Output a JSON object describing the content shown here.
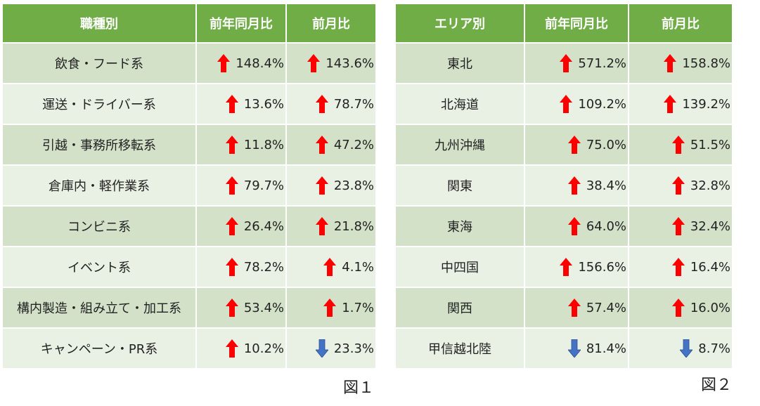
{
  "table1": {
    "headers": [
      "職種別",
      "前年同月比",
      "前月比"
    ],
    "rows": [
      {
        "name": "飲食・フード系",
        "yoy": {
          "dir": "up",
          "value": "148.4%"
        },
        "mom": {
          "dir": "up",
          "value": "143.6%"
        }
      },
      {
        "name": "運送・ドライバー系",
        "yoy": {
          "dir": "up",
          "value": "13.6%"
        },
        "mom": {
          "dir": "up",
          "value": "78.7%"
        }
      },
      {
        "name": "引越・事務所移転系",
        "yoy": {
          "dir": "up",
          "value": "11.8%"
        },
        "mom": {
          "dir": "up",
          "value": "47.2%"
        }
      },
      {
        "name": "倉庫内・軽作業系",
        "yoy": {
          "dir": "up",
          "value": "79.7%"
        },
        "mom": {
          "dir": "up",
          "value": "23.8%"
        }
      },
      {
        "name": "コンビニ系",
        "yoy": {
          "dir": "up",
          "value": "26.4%"
        },
        "mom": {
          "dir": "up",
          "value": "21.8%"
        }
      },
      {
        "name": "イベント系",
        "yoy": {
          "dir": "up",
          "value": "78.2%"
        },
        "mom": {
          "dir": "up",
          "value": "4.1%"
        }
      },
      {
        "name": "構内製造・組み立て・加工系",
        "yoy": {
          "dir": "up",
          "value": "53.4%"
        },
        "mom": {
          "dir": "up",
          "value": "1.7%"
        }
      },
      {
        "name": "キャンペーン・PR系",
        "yoy": {
          "dir": "up",
          "value": "10.2%"
        },
        "mom": {
          "dir": "down",
          "value": "23.3%"
        }
      }
    ],
    "caption": "図１"
  },
  "table2": {
    "headers": [
      "エリア別",
      "前年同月比",
      "前月比"
    ],
    "rows": [
      {
        "name": "東北",
        "yoy": {
          "dir": "up",
          "value": "571.2%"
        },
        "mom": {
          "dir": "up",
          "value": "158.8%"
        }
      },
      {
        "name": "北海道",
        "yoy": {
          "dir": "up",
          "value": "109.2%"
        },
        "mom": {
          "dir": "up",
          "value": "139.2%"
        }
      },
      {
        "name": "九州沖縄",
        "yoy": {
          "dir": "up",
          "value": "75.0%"
        },
        "mom": {
          "dir": "up",
          "value": "51.5%"
        }
      },
      {
        "name": "関東",
        "yoy": {
          "dir": "up",
          "value": "38.4%"
        },
        "mom": {
          "dir": "up",
          "value": "32.8%"
        }
      },
      {
        "name": "東海",
        "yoy": {
          "dir": "up",
          "value": "64.0%"
        },
        "mom": {
          "dir": "up",
          "value": "32.4%"
        }
      },
      {
        "name": "中四国",
        "yoy": {
          "dir": "up",
          "value": "156.6%"
        },
        "mom": {
          "dir": "up",
          "value": "16.4%"
        }
      },
      {
        "name": "関西",
        "yoy": {
          "dir": "up",
          "value": "57.4%"
        },
        "mom": {
          "dir": "up",
          "value": "16.0%"
        }
      },
      {
        "name": "甲信越北陸",
        "yoy": {
          "dir": "down",
          "value": "81.4%"
        },
        "mom": {
          "dir": "down",
          "value": "8.7%"
        }
      }
    ],
    "caption": "図２"
  },
  "colors": {
    "header_bg": "#70ad47",
    "row_even": "#d3e1c9",
    "row_odd": "#e9f0e4",
    "arrow_up": "#ff0000",
    "arrow_down": "#4472c4"
  },
  "icons": {
    "up": "red-up-arrow-icon",
    "down": "blue-down-arrow-icon"
  }
}
